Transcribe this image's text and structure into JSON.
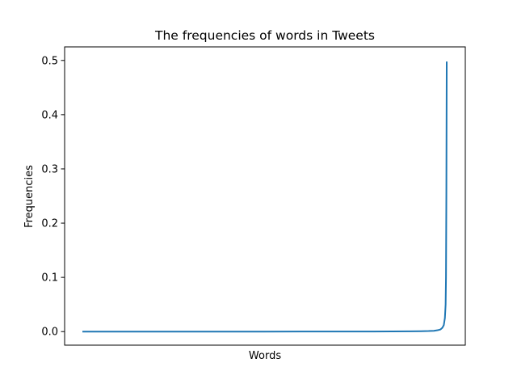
{
  "chart_data": {
    "type": "line",
    "title": "The frequencies of words in Tweets",
    "xlabel": "Words",
    "ylabel": "Frequencies",
    "x_ticks_shown": false,
    "ylim": [
      -0.025,
      0.525
    ],
    "yticks": [
      0.0,
      0.1,
      0.2,
      0.3,
      0.4,
      0.5
    ],
    "ytick_labels": [
      "0.0",
      "0.1",
      "0.2",
      "0.3",
      "0.4",
      "0.5"
    ],
    "grid": false,
    "legend": "none",
    "series": [
      {
        "color": "#1f77b4",
        "points": [
          [
            0.0,
            0.0
          ],
          [
            0.1,
            0.0
          ],
          [
            0.2,
            0.0
          ],
          [
            0.3,
            0.0
          ],
          [
            0.4,
            0.0
          ],
          [
            0.5,
            0.0
          ],
          [
            0.6,
            0.0001
          ],
          [
            0.7,
            0.0001
          ],
          [
            0.8,
            0.0002
          ],
          [
            0.85,
            0.0003
          ],
          [
            0.9,
            0.0005
          ],
          [
            0.93,
            0.0007
          ],
          [
            0.95,
            0.001
          ],
          [
            0.965,
            0.0015
          ],
          [
            0.975,
            0.0025
          ],
          [
            0.983,
            0.004
          ],
          [
            0.988,
            0.007
          ],
          [
            0.992,
            0.012
          ],
          [
            0.995,
            0.025
          ],
          [
            0.997,
            0.05
          ],
          [
            0.998,
            0.1
          ],
          [
            0.999,
            0.25
          ],
          [
            1.0,
            0.498
          ]
        ]
      }
    ]
  }
}
